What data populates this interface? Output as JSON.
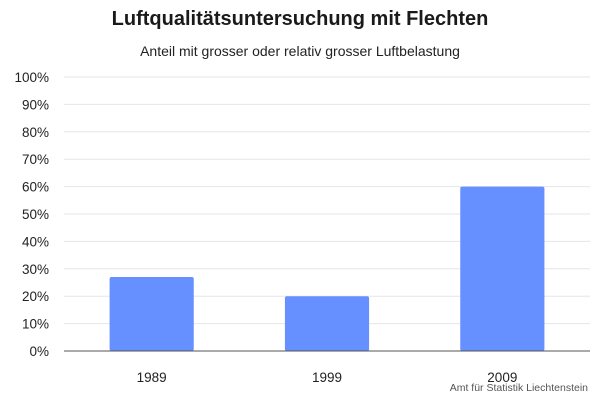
{
  "chart_data": {
    "type": "bar",
    "title": "Luftqualitätsuntersuchung mit Flechten",
    "subtitle": "Anteil mit grosser oder relativ grosser Luftbelastung",
    "categories": [
      "1989",
      "1999",
      "2009"
    ],
    "values": [
      27,
      20,
      60
    ],
    "ylim": [
      0,
      100
    ],
    "yticks": [
      "0%",
      "10%",
      "20%",
      "30%",
      "40%",
      "50%",
      "60%",
      "70%",
      "80%",
      "90%",
      "100%"
    ],
    "grid": true,
    "bar_color": "#6690ff",
    "source": "Amt für Statistik Liechtenstein"
  }
}
